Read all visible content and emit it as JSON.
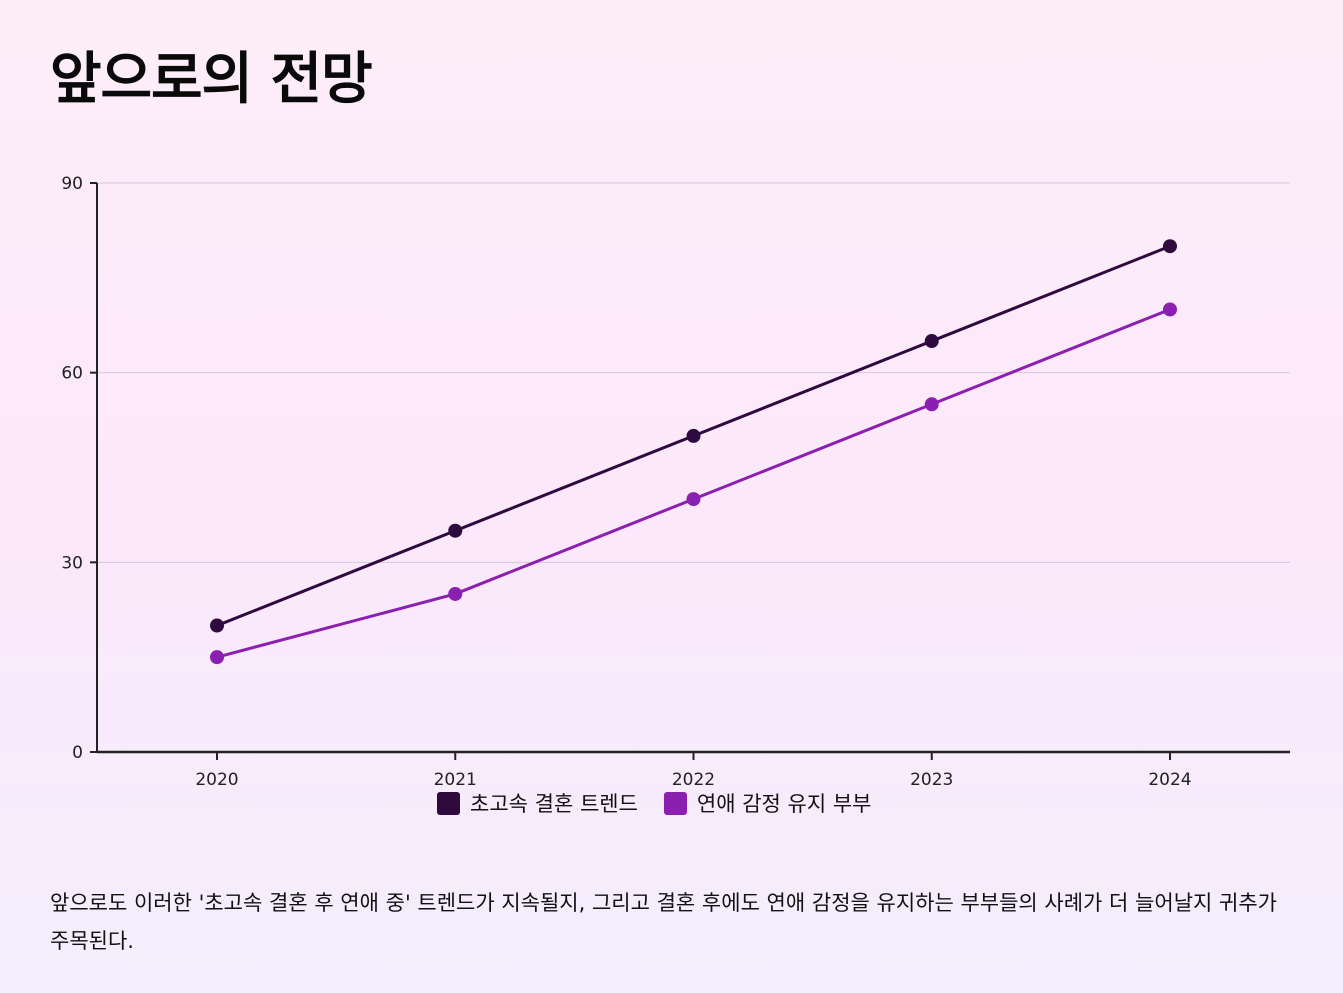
{
  "page": {
    "title": "앞으로의 전망",
    "description": "앞으로도 이러한 '초고속 결혼 후 연애 중' 트렌드가 지속될지, 그리고 결혼 후에도 연애 감정을 유지하는 부부들의 사례가 더 늘어날지 귀추가 주목된다."
  },
  "chart_data": {
    "type": "line",
    "title": "",
    "xlabel": "",
    "ylabel": "",
    "x": [
      "2020",
      "2021",
      "2022",
      "2023",
      "2024"
    ],
    "ylim": [
      0,
      90
    ],
    "yticks": [
      0,
      30,
      60,
      90
    ],
    "grid": true,
    "legend": "bottom-center",
    "series": [
      {
        "name": "초고속 결혼 트렌드",
        "values": [
          20,
          35,
          50,
          65,
          80
        ],
        "color": "#2e0a3f"
      },
      {
        "name": "연애 감정 유지 부부",
        "values": [
          15,
          25,
          40,
          55,
          70
        ],
        "color": "#8b1fb0"
      }
    ]
  }
}
